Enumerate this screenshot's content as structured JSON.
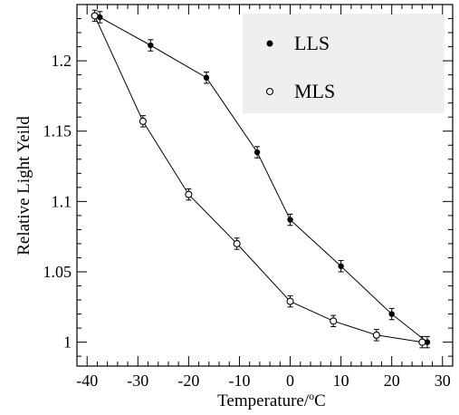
{
  "chart_data": {
    "type": "line",
    "title": "",
    "xlabel": "Temperature/",
    "xlabel_super": "o",
    "xlabel_unit": "C",
    "ylabel": "Relative Light Yeild",
    "xlim": [
      -42,
      32
    ],
    "ylim": [
      0.983,
      1.24
    ],
    "x_ticks": [
      -40,
      -30,
      -20,
      -10,
      0,
      10,
      20,
      30
    ],
    "x_tick_labels": [
      "-40",
      "-30",
      "-20",
      "-10",
      "0",
      "10",
      "20",
      "30"
    ],
    "y_ticks": [
      1.0,
      1.05,
      1.1,
      1.15,
      1.2
    ],
    "y_tick_labels": [
      "1",
      "1.05",
      "1.1",
      "1.15",
      "1.2"
    ],
    "grid": false,
    "legend_position": "top-right",
    "series": [
      {
        "name": "LLS",
        "marker": "filled-circle",
        "x": [
          -37.5,
          -27.5,
          -16.5,
          -6.5,
          0,
          10,
          20,
          27
        ],
        "y": [
          1.231,
          1.211,
          1.188,
          1.135,
          1.087,
          1.054,
          1.02,
          1.0
        ],
        "err": [
          0.004,
          0.004,
          0.004,
          0.004,
          0.004,
          0.004,
          0.004,
          0.004
        ]
      },
      {
        "name": "MLS",
        "marker": "open-circle",
        "x": [
          -38.5,
          -29,
          -20,
          -10.5,
          0,
          8.5,
          17,
          26
        ],
        "y": [
          1.232,
          1.157,
          1.105,
          1.07,
          1.029,
          1.015,
          1.005,
          1.0
        ],
        "err": [
          0.004,
          0.004,
          0.004,
          0.004,
          0.004,
          0.004,
          0.004,
          0.004
        ]
      }
    ],
    "colors": {
      "line": "#000000",
      "legend_bg": "#efefef",
      "plot_bg": "#ffffff"
    }
  }
}
